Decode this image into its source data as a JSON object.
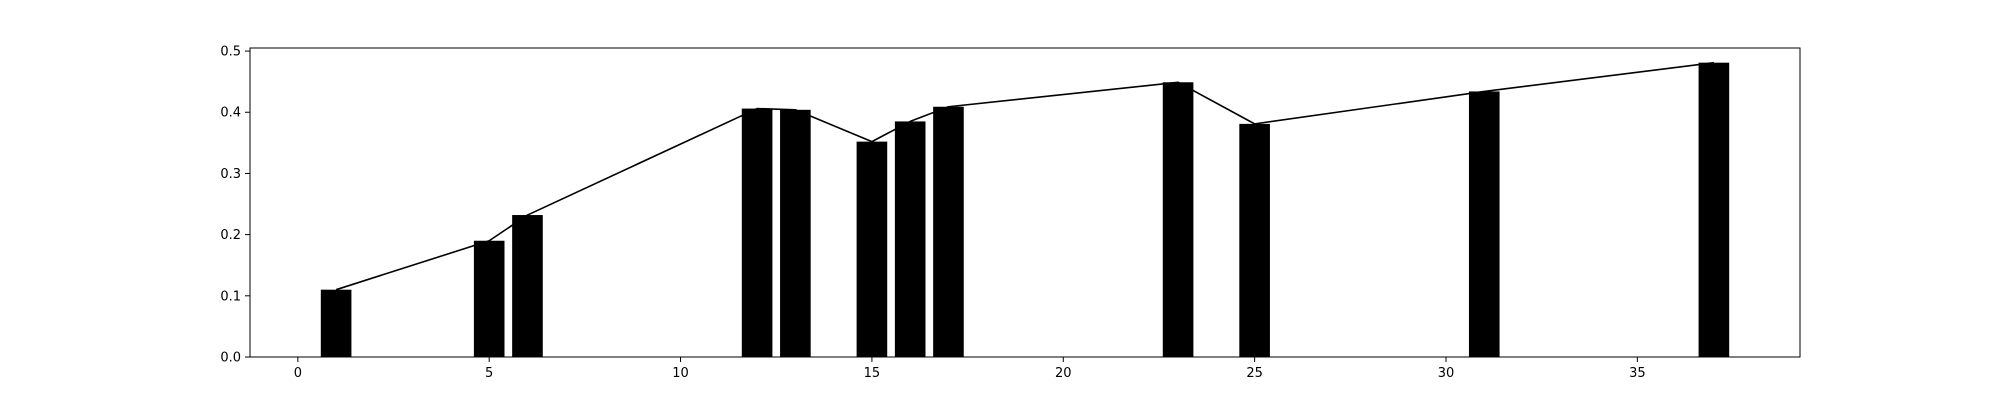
{
  "chart_data": {
    "type": "bar",
    "title": "",
    "xlabel": "",
    "ylabel": "",
    "xlim": [
      -1.25,
      39.25
    ],
    "ylim": [
      0,
      0.505
    ],
    "grid": false,
    "x_ticks": [
      0,
      5,
      10,
      15,
      20,
      25,
      30,
      35
    ],
    "x_tick_labels": [
      "0",
      "5",
      "10",
      "15",
      "20",
      "25",
      "30",
      "35"
    ],
    "y_ticks": [
      0.0,
      0.1,
      0.2,
      0.3,
      0.4,
      0.5
    ],
    "y_tick_labels": [
      "0.0",
      "0.1",
      "0.2",
      "0.3",
      "0.4",
      "0.5"
    ],
    "bar_width": 0.8,
    "x": [
      1,
      5,
      6,
      12,
      13,
      15,
      16,
      17,
      23,
      25,
      31,
      37
    ],
    "values": [
      0.11,
      0.19,
      0.232,
      0.406,
      0.404,
      0.352,
      0.385,
      0.409,
      0.449,
      0.381,
      0.434,
      0.481
    ],
    "line_values": [
      0.11,
      0.19,
      0.232,
      0.406,
      0.404,
      0.352,
      0.385,
      0.409,
      0.449,
      0.381,
      0.434,
      0.481
    ],
    "colors": {
      "bar": "#000000",
      "line": "#000000",
      "axis": "#000000",
      "background": "#ffffff"
    }
  }
}
